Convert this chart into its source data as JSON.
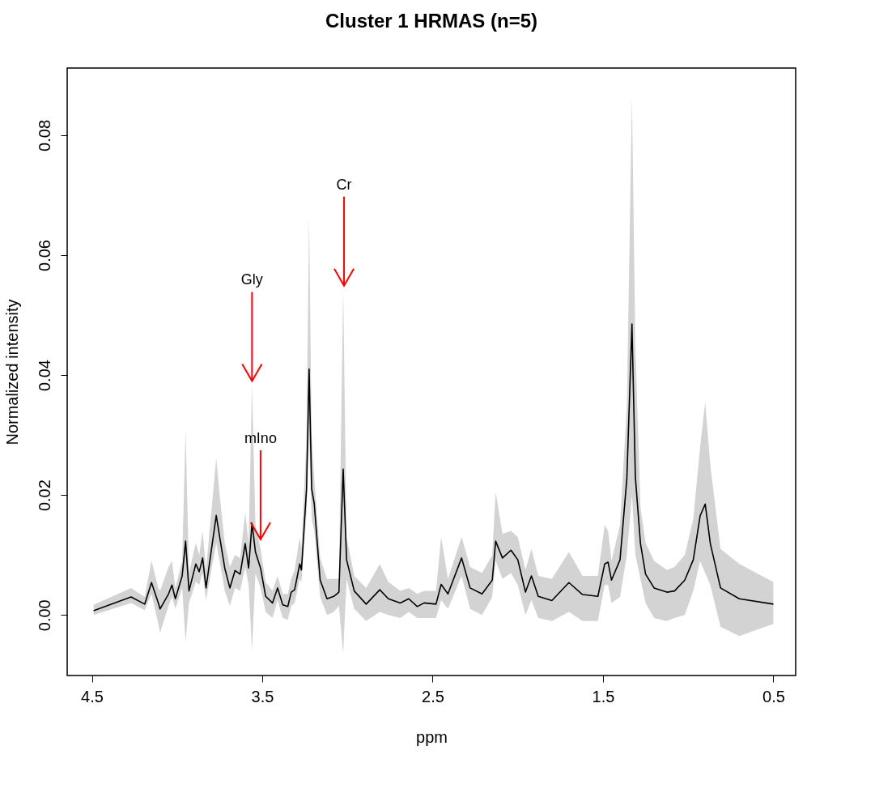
{
  "chart_data": {
    "type": "line",
    "title": "Cluster 1 HRMAS (n=5)",
    "xlabel": "ppm",
    "ylabel": "Normalized intensity",
    "xlim": [
      4.645,
      0.369
    ],
    "xticks": [
      4.5,
      3.5,
      2.5,
      1.5,
      0.5
    ],
    "ylim": [
      -0.0101,
      0.0912
    ],
    "yticks": [
      {
        "value": 0,
        "label": "0.00"
      },
      {
        "value": 0.02,
        "label": "0.02"
      },
      {
        "value": 0.04,
        "label": "0.04"
      },
      {
        "value": 0.06,
        "label": "0.06"
      },
      {
        "value": 0.08,
        "label": "0.08"
      }
    ],
    "line_style": "solid",
    "marker": "none",
    "annotations": [
      {
        "text": "Gly",
        "x": 3.56,
        "y": 0.039
      },
      {
        "text": "Cr",
        "x": 3.02,
        "y": 0.0549
      },
      {
        "text": "mIno",
        "x": 3.51,
        "y": 0.0126
      }
    ],
    "series": [
      {
        "color": "#000000",
        "x": [
          4.49,
          4.27,
          4.19,
          4.15,
          4.11,
          4.1,
          4.05,
          4.03,
          4.01,
          3.97,
          3.95,
          3.93,
          3.89,
          3.87,
          3.85,
          3.83,
          3.77,
          3.75,
          3.72,
          3.69,
          3.66,
          3.63,
          3.6,
          3.58,
          3.56,
          3.54,
          3.51,
          3.48,
          3.44,
          3.41,
          3.38,
          3.35,
          3.33,
          3.31,
          3.28,
          3.27,
          3.24,
          3.225,
          3.21,
          3.195,
          3.16,
          3.12,
          3.08,
          3.05,
          3.025,
          3.005,
          2.96,
          2.89,
          2.81,
          2.76,
          2.69,
          2.64,
          2.59,
          2.55,
          2.48,
          2.45,
          2.41,
          2.33,
          2.28,
          2.21,
          2.15,
          2.13,
          2.09,
          2.04,
          2.0,
          1.955,
          1.92,
          1.88,
          1.8,
          1.7,
          1.62,
          1.53,
          1.49,
          1.47,
          1.45,
          1.4,
          1.36,
          1.33,
          1.31,
          1.28,
          1.25,
          1.2,
          1.125,
          1.08,
          1.02,
          0.97,
          0.93,
          0.9,
          0.87,
          0.81,
          0.7,
          0.5
        ],
        "values": [
          0.0007,
          0.003,
          0.0018,
          0.0054,
          0.002,
          0.001,
          0.0035,
          0.005,
          0.0027,
          0.0065,
          0.0123,
          0.004,
          0.0085,
          0.0072,
          0.0095,
          0.0045,
          0.0166,
          0.013,
          0.0078,
          0.0045,
          0.0074,
          0.0068,
          0.0119,
          0.0078,
          0.0153,
          0.0105,
          0.0078,
          0.0031,
          0.002,
          0.0045,
          0.0017,
          0.0014,
          0.0038,
          0.0042,
          0.0085,
          0.0075,
          0.021,
          0.041,
          0.021,
          0.0186,
          0.0058,
          0.0027,
          0.0031,
          0.0038,
          0.0243,
          0.0092,
          0.004,
          0.0018,
          0.0042,
          0.0027,
          0.002,
          0.0027,
          0.0014,
          0.002,
          0.0018,
          0.0051,
          0.0035,
          0.0095,
          0.0045,
          0.0035,
          0.0058,
          0.0123,
          0.0095,
          0.0108,
          0.0092,
          0.0038,
          0.0065,
          0.0031,
          0.0024,
          0.0054,
          0.0034,
          0.0031,
          0.0085,
          0.0088,
          0.0058,
          0.0092,
          0.0227,
          0.0485,
          0.023,
          0.0119,
          0.0068,
          0.0045,
          0.0038,
          0.004,
          0.0058,
          0.0092,
          0.0165,
          0.0185,
          0.0119,
          0.0045,
          0.0027,
          0.0018
        ],
        "lower": [
          0.0,
          0.002,
          0.0008,
          0.0035,
          -0.0015,
          -0.003,
          0.0015,
          0.003,
          0.001,
          0.0045,
          -0.0045,
          0.002,
          0.0055,
          0.005,
          0.007,
          0.0025,
          0.012,
          0.009,
          0.004,
          0.0015,
          0.0045,
          0.004,
          0.008,
          0.005,
          -0.006,
          0.007,
          0.0045,
          0.0005,
          -0.0005,
          0.0025,
          -0.0005,
          -0.0008,
          0.0015,
          0.002,
          0.006,
          0.0055,
          0.017,
          0.03,
          0.016,
          0.014,
          0.003,
          0.0,
          0.0005,
          0.0015,
          -0.0065,
          0.006,
          0.001,
          -0.001,
          0.0005,
          0.0,
          -0.0005,
          0.0005,
          -0.0005,
          -0.0005,
          -0.0005,
          0.0025,
          0.001,
          0.0065,
          0.001,
          0.0,
          0.003,
          0.009,
          0.006,
          0.007,
          0.005,
          0.0,
          0.0025,
          -0.0005,
          -0.001,
          0.0005,
          -0.001,
          -0.001,
          0.005,
          0.005,
          0.002,
          0.003,
          0.01,
          0.02,
          0.01,
          0.006,
          0.002,
          -0.0005,
          -0.001,
          -0.0005,
          0.0,
          0.004,
          0.009,
          0.007,
          0.005,
          -0.002,
          -0.0035,
          -0.0015
        ],
        "upper": [
          0.0017,
          0.0045,
          0.003,
          0.009,
          0.0045,
          0.004,
          0.008,
          0.009,
          0.0045,
          0.009,
          0.031,
          0.007,
          0.012,
          0.01,
          0.014,
          0.0075,
          0.0262,
          0.02,
          0.012,
          0.008,
          0.01,
          0.0095,
          0.017,
          0.012,
          0.0385,
          0.015,
          0.011,
          0.0055,
          0.004,
          0.0065,
          0.0035,
          0.0035,
          0.006,
          0.0075,
          0.013,
          0.011,
          0.03,
          0.0665,
          0.03,
          0.023,
          0.0095,
          0.006,
          0.006,
          0.006,
          0.0545,
          0.013,
          0.0065,
          0.0045,
          0.0085,
          0.0055,
          0.004,
          0.0045,
          0.0035,
          0.004,
          0.004,
          0.013,
          0.006,
          0.013,
          0.008,
          0.007,
          0.01,
          0.0205,
          0.0135,
          0.014,
          0.013,
          0.0075,
          0.011,
          0.0065,
          0.006,
          0.0105,
          0.0065,
          0.0065,
          0.015,
          0.014,
          0.009,
          0.015,
          0.035,
          0.0865,
          0.045,
          0.018,
          0.012,
          0.009,
          0.0075,
          0.008,
          0.01,
          0.016,
          0.028,
          0.0355,
          0.025,
          0.011,
          0.0085,
          0.0055
        ]
      }
    ]
  }
}
